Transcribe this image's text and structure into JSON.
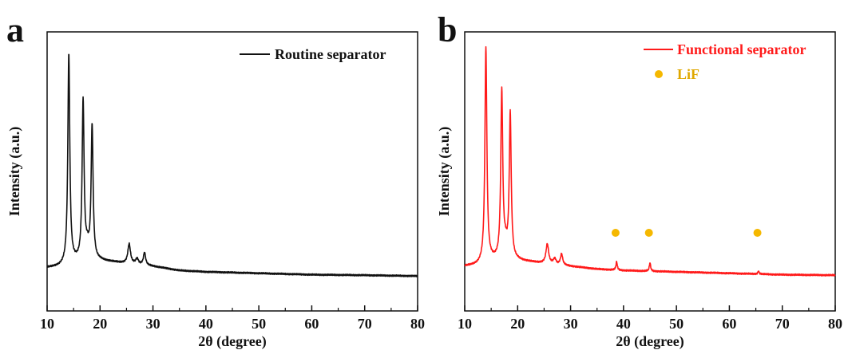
{
  "chart_data": [
    {
      "type": "line",
      "panel_label": "a",
      "xlabel": "2θ (degree)",
      "ylabel": "Intensity (a.u.)",
      "xlim": [
        10,
        80
      ],
      "ylim": [
        0,
        1
      ],
      "xticks": [
        "10",
        "20",
        "30",
        "40",
        "50",
        "60",
        "70",
        "80"
      ],
      "y_tick_labels_shown": false,
      "grid": false,
      "legend_position": "top-right",
      "series": [
        {
          "name": "Routine separator",
          "color": "#111111",
          "peaks": [
            {
              "x": 14.1,
              "height": 0.75,
              "width": 0.22
            },
            {
              "x": 16.8,
              "height": 0.57,
              "width": 0.22
            },
            {
              "x": 18.5,
              "height": 0.48,
              "width": 0.22
            },
            {
              "x": 17.6,
              "height": 0.04,
              "width": 0.4
            },
            {
              "x": 25.5,
              "height": 0.07,
              "width": 0.3
            },
            {
              "x": 27.0,
              "height": 0.02,
              "width": 0.3
            },
            {
              "x": 28.4,
              "height": 0.045,
              "width": 0.25
            }
          ],
          "background": [
            [
              10,
              0.155
            ],
            [
              12.5,
              0.16
            ],
            [
              15,
              0.175
            ],
            [
              20,
              0.18
            ],
            [
              25,
              0.17
            ],
            [
              30,
              0.16
            ],
            [
              35,
              0.145
            ],
            [
              40,
              0.14
            ],
            [
              50,
              0.135
            ],
            [
              60,
              0.13
            ],
            [
              70,
              0.128
            ],
            [
              80,
              0.125
            ]
          ]
        }
      ],
      "markers": []
    },
    {
      "type": "line",
      "panel_label": "b",
      "xlabel": "2θ (degree)",
      "ylabel": "Intensity (a.u.)",
      "xlim": [
        10,
        80
      ],
      "ylim": [
        0,
        1
      ],
      "xticks": [
        "10",
        "20",
        "30",
        "40",
        "50",
        "60",
        "70",
        "80"
      ],
      "y_tick_labels_shown": false,
      "grid": false,
      "legend_position": "top-right",
      "series": [
        {
          "name": "Functional separator",
          "color": "#ff1a1a",
          "peaks": [
            {
              "x": 14.0,
              "height": 0.77,
              "width": 0.22
            },
            {
              "x": 17.0,
              "height": 0.6,
              "width": 0.22
            },
            {
              "x": 18.6,
              "height": 0.52,
              "width": 0.22
            },
            {
              "x": 17.7,
              "height": 0.04,
              "width": 0.4
            },
            {
              "x": 25.6,
              "height": 0.07,
              "width": 0.3
            },
            {
              "x": 27.0,
              "height": 0.02,
              "width": 0.3
            },
            {
              "x": 28.3,
              "height": 0.04,
              "width": 0.25
            },
            {
              "x": 38.7,
              "height": 0.03,
              "width": 0.15
            },
            {
              "x": 45.0,
              "height": 0.03,
              "width": 0.15
            },
            {
              "x": 65.5,
              "height": 0.01,
              "width": 0.15
            }
          ],
          "background": [
            [
              10,
              0.16
            ],
            [
              12.5,
              0.165
            ],
            [
              15,
              0.18
            ],
            [
              20,
              0.18
            ],
            [
              25,
              0.17
            ],
            [
              30,
              0.16
            ],
            [
              35,
              0.15
            ],
            [
              40,
              0.145
            ],
            [
              50,
              0.14
            ],
            [
              60,
              0.135
            ],
            [
              70,
              0.13
            ],
            [
              80,
              0.128
            ]
          ]
        }
      ],
      "markers": [
        {
          "name": "LiF",
          "color": "#f5b800",
          "x": [
            38.5,
            44.8,
            65.3
          ],
          "y": 0.28
        }
      ]
    }
  ]
}
